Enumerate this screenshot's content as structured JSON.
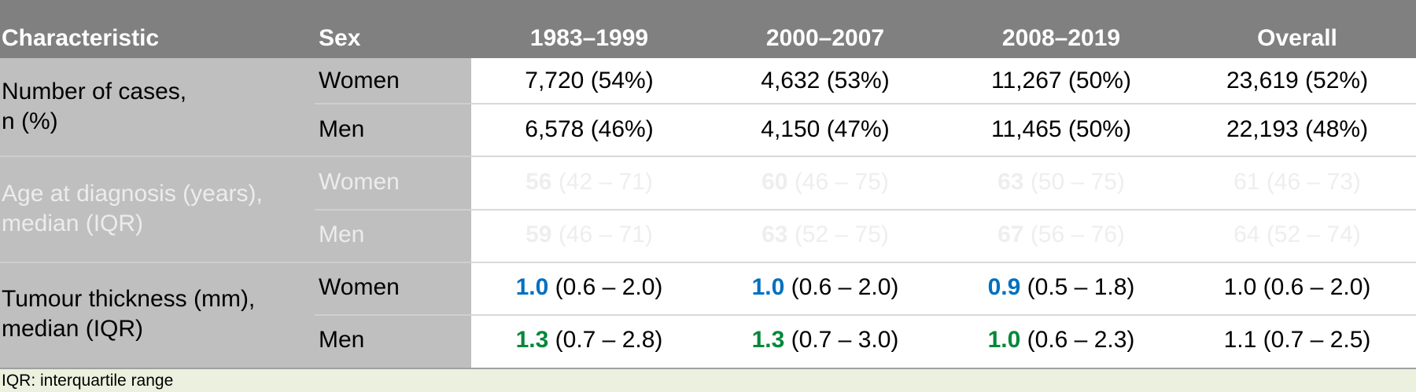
{
  "header": {
    "characteristic": "Characteristic",
    "sex": "Sex",
    "period1": "1983–1999",
    "period2": "2000–2007",
    "period3": "2008–2019",
    "overall": "Overall"
  },
  "rows": {
    "cases": {
      "label": "Number of cases,\nn (%)",
      "women": {
        "sex": "Women",
        "p1": "7,720 (54%)",
        "p2": "4,632 (53%)",
        "p3": "11,267 (50%)",
        "overall": "23,619 (52%)"
      },
      "men": {
        "sex": "Men",
        "p1": "6,578 (46%)",
        "p2": "4,150 (47%)",
        "p3": "11,465 (50%)",
        "overall": "22,193 (48%)"
      }
    },
    "age": {
      "label": "Age at diagnosis (years),\nmedian (IQR)",
      "women": {
        "sex": "Women",
        "p1_median": "56",
        "p1_iqr": "(42 – 71)",
        "p2_median": "60",
        "p2_iqr": "(46 – 75)",
        "p3_median": "63",
        "p3_iqr": "(50 – 75)",
        "overall": "61 (46 – 73)"
      },
      "men": {
        "sex": "Men",
        "p1_median": "59",
        "p1_iqr": "(46 – 71)",
        "p2_median": "63",
        "p2_iqr": "(52 – 75)",
        "p3_median": "67",
        "p3_iqr": "(56 – 76)",
        "overall": "64 (52 – 74)"
      }
    },
    "thickness": {
      "label": "Tumour thickness (mm),\nmedian (IQR)",
      "women": {
        "sex": "Women",
        "p1_median": "1.0",
        "p1_iqr": "(0.6 – 2.0)",
        "p2_median": "1.0",
        "p2_iqr": "(0.6 – 2.0)",
        "p3_median": "0.9",
        "p3_iqr": "(0.5 – 1.8)",
        "overall": "1.0 (0.6 – 2.0)"
      },
      "men": {
        "sex": "Men",
        "p1_median": "1.3",
        "p1_iqr": "(0.7 – 2.8)",
        "p2_median": "1.3",
        "p2_iqr": "(0.7 – 3.0)",
        "p3_median": "1.0",
        "p3_iqr": "(0.6 – 2.3)",
        "overall": "1.1 (0.7 – 2.5)"
      }
    }
  },
  "footnote": "IQR: interquartile range",
  "colors": {
    "header_bg": "#808080",
    "left_bg": "#bfbfbf",
    "women_highlight": "#0070c0",
    "men_highlight": "#00883a",
    "faded_text": "#eeeeee",
    "footer_bg": "#ebf1de"
  }
}
